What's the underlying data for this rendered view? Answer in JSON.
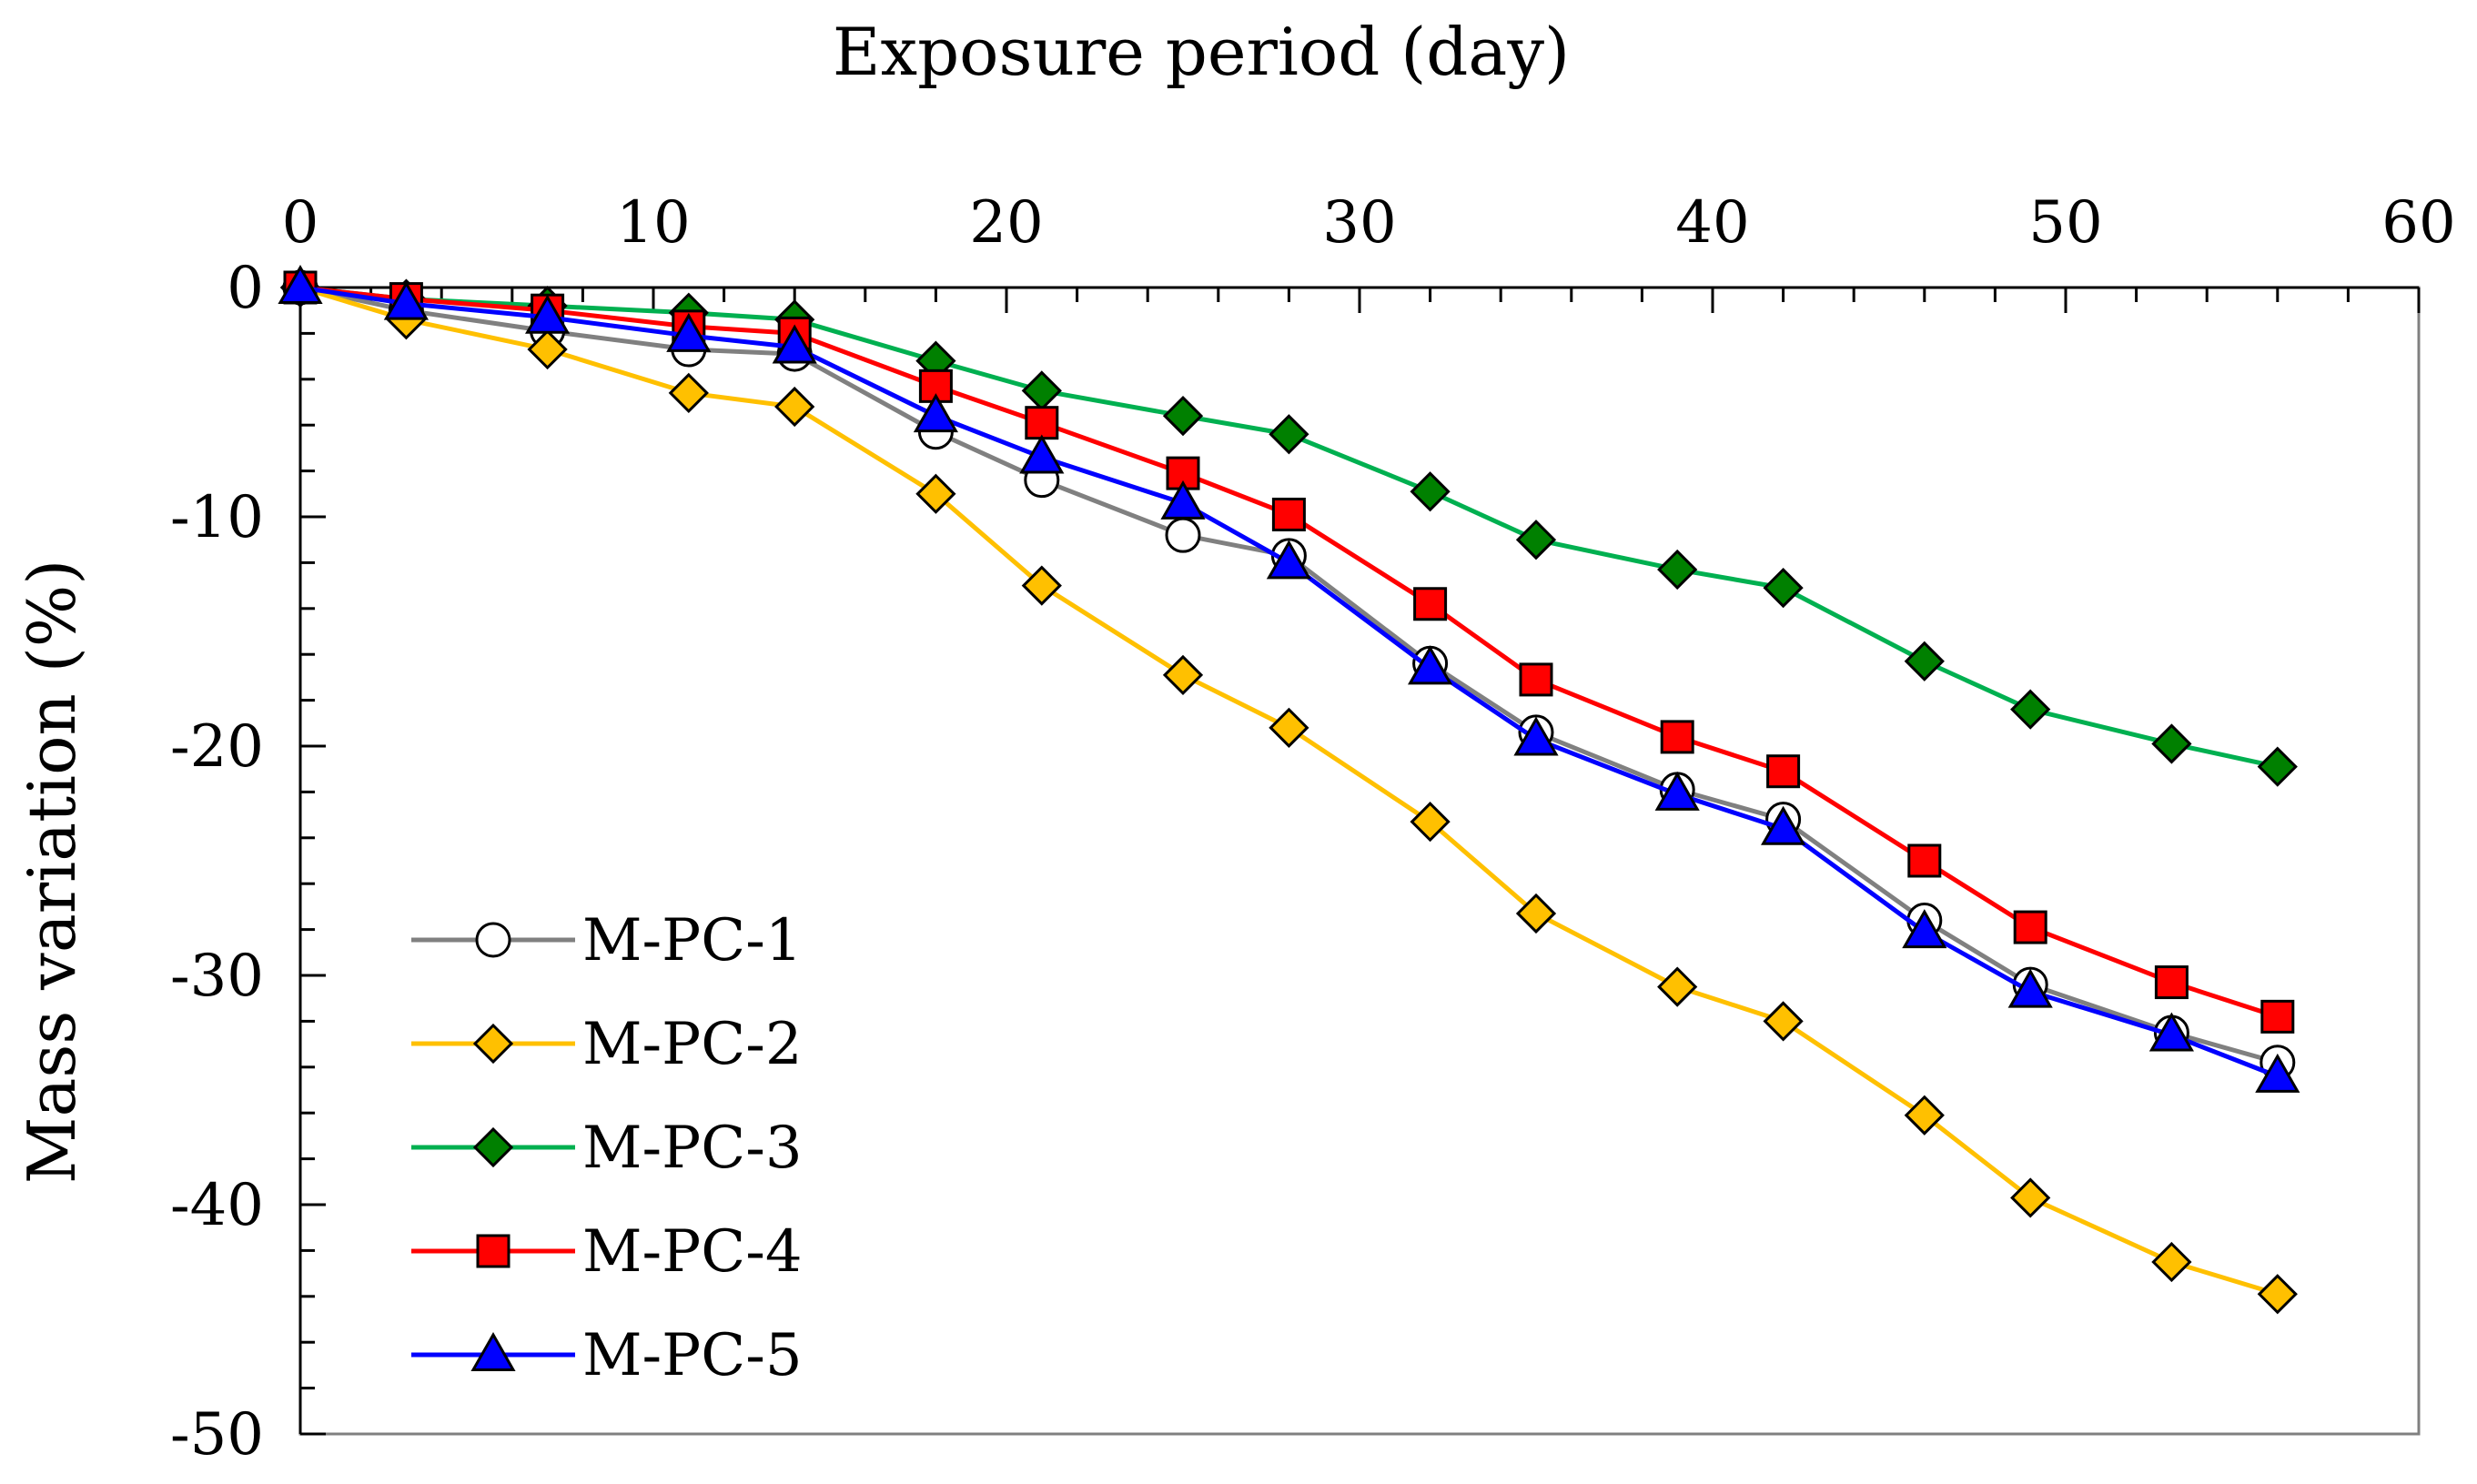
{
  "chart_data": {
    "type": "line",
    "title": "",
    "xlabel": "Exposure period (day)",
    "ylabel": "Mass variation (%)",
    "x_axis_position": "top",
    "xlim": [
      0,
      60
    ],
    "ylim": [
      -50,
      0
    ],
    "x_ticks": [
      0,
      10,
      20,
      30,
      40,
      50,
      60
    ],
    "y_ticks": [
      0,
      -10,
      -20,
      -30,
      -40,
      -50
    ],
    "x_tick_labels": [
      "0",
      "10",
      "20",
      "30",
      "40",
      "50",
      "60"
    ],
    "y_tick_labels": [
      "0",
      "-10",
      "-20",
      "-30",
      "-40",
      "-50"
    ],
    "grid": false,
    "legend_position": "bottom-left",
    "x": [
      0,
      3,
      7,
      11,
      14,
      18,
      21,
      25,
      28,
      32,
      35,
      39,
      42,
      46,
      49,
      53,
      56
    ],
    "series": [
      {
        "name": "M-PC-1",
        "color": "#808080",
        "marker": "circle",
        "marker_fill": "#ffffff",
        "values": [
          0,
          -1.0,
          -1.9,
          -2.7,
          -2.9,
          -6.3,
          -8.4,
          -10.8,
          -11.7,
          -16.4,
          -19.4,
          -21.9,
          -23.2,
          -27.6,
          -30.4,
          -32.5,
          -33.8
        ]
      },
      {
        "name": "M-PC-2",
        "color": "#ffc000",
        "marker": "diamond",
        "marker_fill": "#ffc000",
        "values": [
          0,
          -1.4,
          -2.7,
          -4.6,
          -5.2,
          -9.0,
          -13.0,
          -16.9,
          -19.2,
          -23.3,
          -27.3,
          -30.5,
          -32.0,
          -36.1,
          -39.7,
          -42.5,
          -43.9
        ]
      },
      {
        "name": "M-PC-3",
        "color": "#00b050",
        "marker": "diamond",
        "marker_fill": "#008000",
        "values": [
          0,
          -0.5,
          -0.8,
          -1.1,
          -1.4,
          -3.2,
          -4.5,
          -5.6,
          -6.4,
          -8.9,
          -11.0,
          -12.3,
          -13.1,
          -16.3,
          -18.4,
          -19.9,
          -20.9
        ]
      },
      {
        "name": "M-PC-4",
        "color": "#ff0000",
        "marker": "square",
        "marker_fill": "#ff0000",
        "values": [
          0,
          -0.5,
          -1.0,
          -1.7,
          -2.0,
          -4.3,
          -5.9,
          -8.1,
          -9.9,
          -13.8,
          -17.1,
          -19.6,
          -21.1,
          -25.0,
          -27.9,
          -30.3,
          -31.8
        ]
      },
      {
        "name": "M-PC-5",
        "color": "#0000ff",
        "marker": "triangle",
        "marker_fill": "#0000ff",
        "values": [
          0,
          -0.7,
          -1.3,
          -2.1,
          -2.6,
          -5.6,
          -7.4,
          -9.4,
          -12.0,
          -16.6,
          -19.7,
          -22.1,
          -23.6,
          -28.1,
          -30.7,
          -32.6,
          -34.4
        ]
      }
    ]
  }
}
